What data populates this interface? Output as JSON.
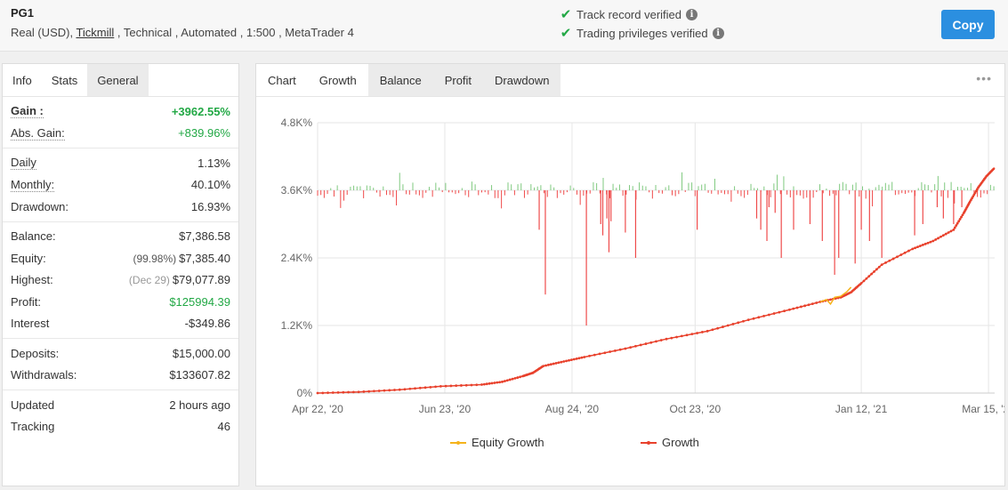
{
  "header": {
    "system_name": "PG1",
    "meta_prefix": "Real (USD), ",
    "broker": "Tickmill",
    "meta_suffix": " , Technical , Automated , 1:500 , MetaTrader 4",
    "track_record": "Track record verified",
    "trading_privileges": "Trading privileges verified",
    "copy_label": "Copy"
  },
  "left_tabs": [
    "Info",
    "Stats",
    "General"
  ],
  "stats": {
    "gain_label": "Gain :",
    "gain_value": "+3962.55%",
    "abs_gain_label": "Abs. Gain:",
    "abs_gain_value": "+839.96%",
    "daily_label": "Daily",
    "daily_value": "1.13%",
    "monthly_label": "Monthly:",
    "monthly_value": "40.10%",
    "drawdown_label": "Drawdown:",
    "drawdown_value": "16.93%",
    "balance_label": "Balance:",
    "balance_value": "$7,386.58",
    "equity_label": "Equity:",
    "equity_note": "(99.98%)",
    "equity_value": "$7,385.40",
    "highest_label": "Highest:",
    "highest_note": "(Dec 29)",
    "highest_value": "$79,077.89",
    "profit_label": "Profit:",
    "profit_value": "$125994.39",
    "interest_label": "Interest",
    "interest_value": "-$349.86",
    "deposits_label": "Deposits:",
    "deposits_value": "$15,000.00",
    "withdrawals_label": "Withdrawals:",
    "withdrawals_value": "$133607.82",
    "updated_label": "Updated",
    "updated_value": "2 hours ago",
    "tracking_label": "Tracking",
    "tracking_value": "46"
  },
  "chart_tabs": [
    "Chart",
    "Growth",
    "Balance",
    "Profit",
    "Drawdown"
  ],
  "menu_dots": "•••",
  "colors": {
    "growth": "#e8412c",
    "equity": "#f5b31b",
    "daily_pos": "#7fc97f",
    "daily_neg": "#ef4b4b",
    "accent": "#2b8fe0",
    "gain_green": "#22a845"
  },
  "chart_data": {
    "type": "line",
    "title": "",
    "y_tick_labels": [
      "0%",
      "1.2K%",
      "2.4K%",
      "3.6K%",
      "4.8K%"
    ],
    "y_ticks": [
      0,
      1200,
      2400,
      3600,
      4800
    ],
    "ylim": [
      0,
      4800
    ],
    "x_tick_labels": [
      "Apr 22, '20",
      "Jun 23, '20",
      "Aug 24, '20",
      "Oct 23, '20",
      "Jan 12, '21",
      "Mar 15, '21"
    ],
    "x_tick_days": [
      0,
      62,
      124,
      184,
      265,
      327
    ],
    "xlim_days": [
      0,
      330
    ],
    "grid": true,
    "legend_position": "bottom",
    "series": [
      {
        "name": "Growth",
        "days": [
          0,
          20,
          40,
          60,
          80,
          90,
          100,
          105,
          110,
          120,
          130,
          150,
          170,
          190,
          210,
          230,
          245,
          255,
          260,
          265,
          275,
          290,
          300,
          310,
          315,
          318,
          322,
          326,
          330
        ],
        "values": [
          0,
          20,
          60,
          120,
          150,
          200,
          300,
          360,
          480,
          560,
          640,
          790,
          960,
          1100,
          1300,
          1480,
          1620,
          1700,
          1790,
          1950,
          2280,
          2560,
          2700,
          2900,
          3200,
          3400,
          3650,
          3850,
          4000
        ]
      },
      {
        "name": "Equity Growth",
        "days": [
          245,
          248,
          250,
          252,
          255,
          258,
          260
        ],
        "values": [
          1620,
          1660,
          1580,
          1700,
          1720,
          1800,
          1880
        ]
      }
    ],
    "daily_bars": {
      "baseline": 3600,
      "description_note": "",
      "days": [
        108,
        111,
        131,
        138,
        139,
        141,
        142,
        143,
        150,
        155,
        185,
        214,
        216,
        219,
        220,
        223,
        226,
        232,
        240,
        246,
        252,
        254,
        262,
        265,
        269,
        275,
        291,
        295,
        302,
        305,
        310,
        314
      ],
      "values": [
        -700,
        -1850,
        -2400,
        -600,
        -800,
        -500,
        -1100,
        -550,
        -750,
        -1200,
        -700,
        -500,
        -700,
        -900,
        -300,
        -400,
        -1200,
        -700,
        -600,
        -900,
        -1500,
        -1200,
        -1300,
        -700,
        -900,
        -1200,
        -800,
        -600,
        -300,
        -500,
        -600,
        -300
      ]
    }
  },
  "legend": [
    "Equity Growth",
    "Growth"
  ]
}
